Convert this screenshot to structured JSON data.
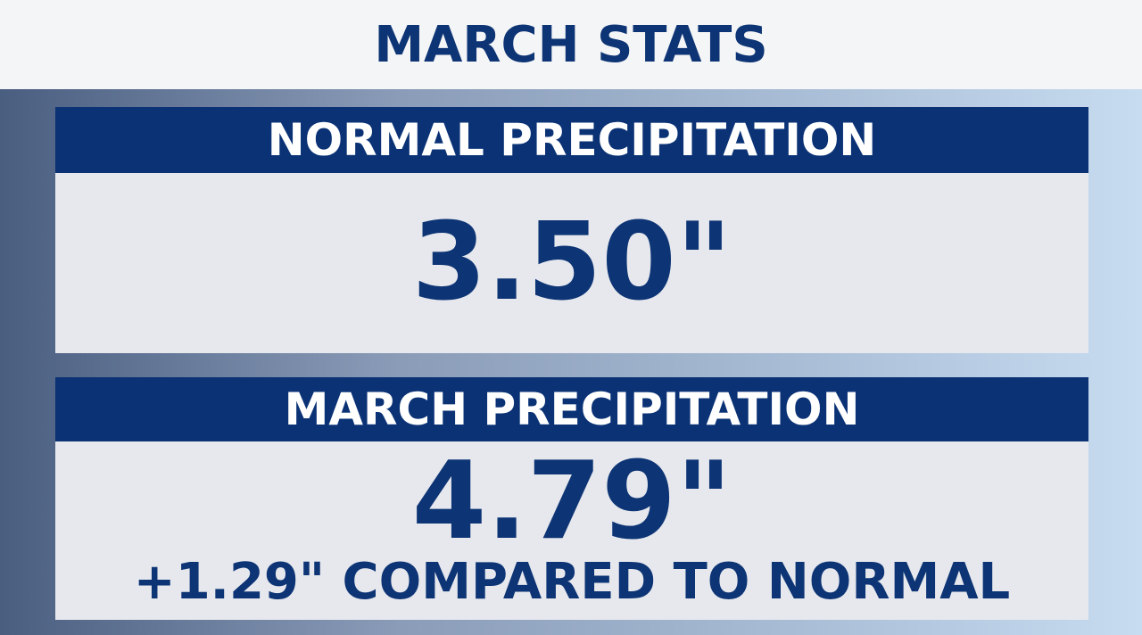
{
  "header": {
    "title": "MARCH STATS"
  },
  "panels": [
    {
      "label": "NORMAL PRECIPITATION",
      "value": "3.50\""
    },
    {
      "label": "MARCH PRECIPITATION",
      "value": "4.79\"",
      "note": "+1.29\" COMPARED TO NORMAL"
    }
  ]
}
